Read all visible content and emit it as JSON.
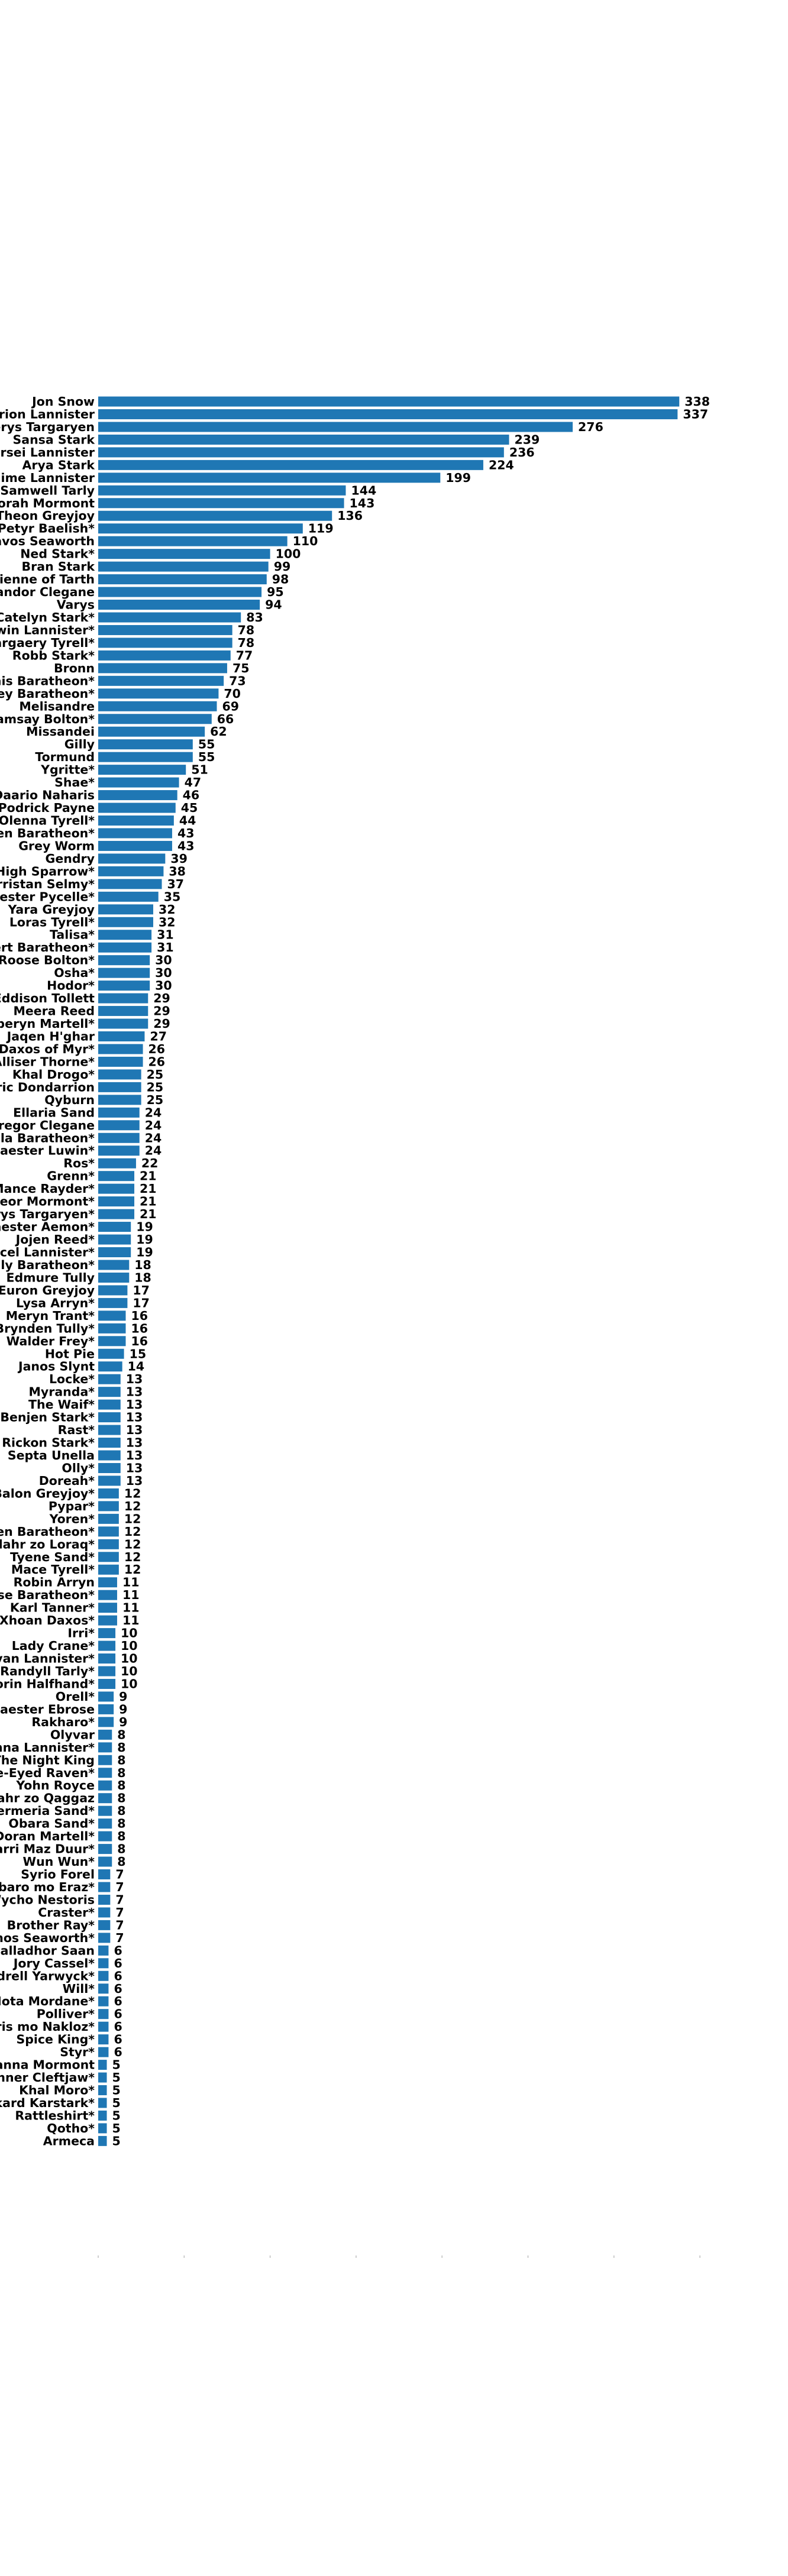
{
  "chart_data": {
    "type": "bar",
    "orientation": "horizontal",
    "bar_color": "#1f77b4",
    "xlim": [
      0,
      350
    ],
    "x_ticks": [
      0,
      50,
      100,
      150,
      200,
      250,
      300,
      350
    ],
    "grid": false,
    "categories": [
      "Jon Snow",
      "Tyrion Lannister",
      "Daenerys Targaryen",
      "Sansa Stark",
      "Cersei Lannister",
      "Arya Stark",
      "Jaime Lannister",
      "Samwell Tarly",
      "Jorah Mormont",
      "Theon Greyjoy",
      "Petyr Baelish*",
      "Davos Seaworth",
      "Ned Stark*",
      "Bran Stark",
      "Brienne of Tarth",
      "Sandor Clegane",
      "Varys",
      "Catelyn Stark*",
      "Tywin Lannister*",
      "Margaery Tyrell*",
      "Robb Stark*",
      "Bronn",
      "Stannis Baratheon*",
      "Joffrey Baratheon*",
      "Melisandre",
      "Ramsay Bolton*",
      "Missandei",
      "Gilly",
      "Tormund",
      "Ygritte*",
      "Shae*",
      "Daario Naharis",
      "Podrick Payne",
      "Olenna Tyrell*",
      "Tommen Baratheon*",
      "Grey Worm",
      "Gendry",
      "High Sparrow*",
      "Barristan Selmy*",
      "Maester Pycelle*",
      "Yara Greyjoy",
      "Loras Tyrell*",
      "Talisa*",
      "Robert Baratheon*",
      "Roose Bolton*",
      "Osha*",
      "Hodor*",
      "Eddison Tollett",
      "Meera Reed",
      "Oberyn Martell*",
      "Jaqen H'ghar",
      "Xaro Xhoan Daxos of Myr*",
      "Alliser Thorne*",
      "Khal Drogo*",
      "Beric Dondarrion",
      "Qyburn",
      "Ellaria Sand",
      "Gregor Clegane",
      "Myrcella Baratheon*",
      "Maester Luwin*",
      "Ros*",
      "Grenn*",
      "Mance Rayder*",
      "Jeor Mormont*",
      "Viserys Targaryen*",
      "Maester Aemon*",
      "Jojen Reed*",
      "Lancel Lannister*",
      "Renly Baratheon*",
      "Edmure Tully",
      "Euron Greyjoy",
      "Lysa Arryn*",
      "Meryn Trant*",
      "Brynden Tully*",
      "Walder Frey*",
      "Hot Pie",
      "Janos Slynt",
      "Locke*",
      "Myranda*",
      "The Waif*",
      "Benjen Stark*",
      "Rast*",
      "Rickon Stark*",
      "Septa Unella",
      "Olly*",
      "Doreah*",
      "Balon Greyjoy*",
      "Pypar*",
      "Yoren*",
      "Shireen Baratheon*",
      "Hizdahr zo Loraq*",
      "Tyene Sand*",
      "Mace Tyrell*",
      "Robin Arryn",
      "Selyse Baratheon*",
      "Karl Tanner*",
      "Xaro Xhoan Daxos*",
      "Irri*",
      "Lady Crane*",
      "Kevan Lannister*",
      "Randyll Tarly*",
      "Qhorin Halfhand*",
      "Orell*",
      "Maester Ebrose",
      "Rakharo*",
      "Olyvar",
      "Lady Olenna Lannister*",
      "The Night King",
      "Three-Eyed Raven*",
      "Yohn Royce",
      "Hizdahr zo Qaggaz",
      "Obermeria Sand*",
      "Obara Sand*",
      "Doran Martell*",
      "Kovarri Maz Duur*",
      "Wun Wun*",
      "Syrio Forel",
      "Izembaro mo Eraz*",
      "Wycho Nestoris",
      "Craster*",
      "Brother Ray*",
      "Matthos Seaworth*",
      "Salladhor Saan",
      "Jory Cassel*",
      "Rodrell Yarwyck*",
      "Will*",
      "Wyman Manderly Mota Mordane*",
      "Polliver*",
      "Tycho Nestoris mo Nakloz*",
      "Spice King*",
      "Styr*",
      "Lyanna Mormont",
      "Thenner Cleftjaw*",
      "Khal Moro*",
      "Rickard Karstark*",
      "Rattleshirt*",
      "Qotho*",
      "Armeca"
    ],
    "values": [
      338,
      337,
      276,
      239,
      236,
      224,
      199,
      144,
      143,
      136,
      119,
      110,
      100,
      99,
      98,
      95,
      94,
      83,
      78,
      78,
      77,
      75,
      73,
      70,
      69,
      66,
      62,
      55,
      55,
      51,
      47,
      46,
      45,
      44,
      43,
      43,
      39,
      38,
      37,
      35,
      32,
      32,
      31,
      31,
      30,
      30,
      30,
      29,
      29,
      29,
      27,
      26,
      26,
      25,
      25,
      25,
      24,
      24,
      24,
      24,
      22,
      21,
      21,
      21,
      21,
      19,
      19,
      19,
      18,
      18,
      17,
      17,
      16,
      16,
      16,
      15,
      14,
      13,
      13,
      13,
      13,
      13,
      13,
      13,
      13,
      13,
      12,
      12,
      12,
      12,
      12,
      12,
      12,
      11,
      11,
      11,
      11,
      10,
      10,
      10,
      10,
      10,
      9,
      9,
      9,
      8,
      8,
      8,
      8,
      8,
      8,
      8,
      8,
      8,
      8,
      8,
      7,
      7,
      7,
      7,
      7,
      7,
      6,
      6,
      6,
      6,
      6,
      6,
      6,
      6,
      6,
      5,
      5,
      5,
      5,
      5,
      5,
      5
    ]
  }
}
